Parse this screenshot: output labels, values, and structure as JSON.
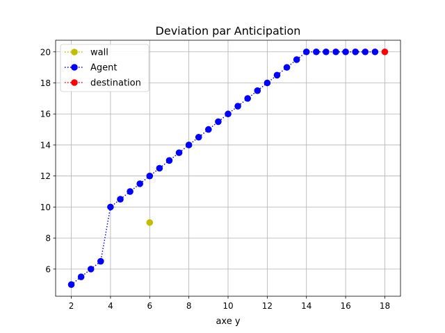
{
  "chart_data": {
    "type": "line",
    "title": "Deviation par Anticipation",
    "xlabel": "axe y",
    "ylabel": "",
    "xlim": [
      1.2,
      18.8
    ],
    "ylim": [
      4.25,
      20.75
    ],
    "xticks": [
      2,
      4,
      6,
      8,
      10,
      12,
      14,
      16,
      18
    ],
    "yticks": [
      6,
      8,
      10,
      12,
      14,
      16,
      18,
      20
    ],
    "grid": true,
    "legend": {
      "position": "top-left"
    },
    "series": [
      {
        "name": "wall",
        "color": "#bfbf00",
        "line_style": "dotted",
        "marker": "circle",
        "x": [
          6
        ],
        "y": [
          9
        ]
      },
      {
        "name": "Agent",
        "color": "#0000ff",
        "line_style": "dotted",
        "marker": "circle",
        "x": [
          2,
          2.5,
          3,
          3.5,
          4,
          4.5,
          5,
          5.5,
          6,
          6.5,
          7,
          7.5,
          8,
          8.5,
          9,
          9.5,
          10,
          10.5,
          11,
          11.5,
          12,
          12.5,
          13,
          13.5,
          14,
          14.5,
          15,
          15.5,
          16,
          16.5,
          17,
          17.5
        ],
        "y": [
          5,
          5.5,
          6,
          6.5,
          10,
          10.5,
          11,
          11.5,
          12,
          12.5,
          13,
          13.5,
          14,
          14.5,
          15,
          15.5,
          16,
          16.5,
          17,
          17.5,
          18,
          18.5,
          19,
          19.5,
          20,
          20,
          20,
          20,
          20,
          20,
          20,
          20
        ]
      },
      {
        "name": "destination",
        "color": "#ff0000",
        "line_style": "dotted",
        "marker": "circle",
        "x": [
          18
        ],
        "y": [
          20
        ]
      }
    ]
  }
}
